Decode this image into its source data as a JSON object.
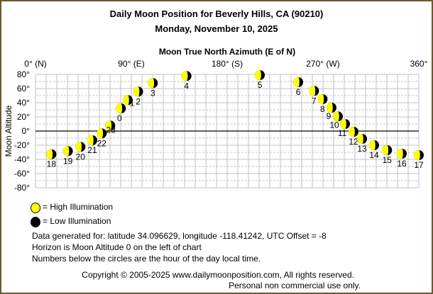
{
  "title": "Daily Moon Position for Beverly Hills, CA (90210)",
  "subtitle": "Monday, November 10, 2025",
  "chart_data": {
    "type": "scatter",
    "title": "Moon True North Azimuth (E of N)",
    "xlabel": "Moon True North Azimuth (E of N)",
    "ylabel": "Moon Altitude",
    "xlim": [
      0,
      360
    ],
    "ylim": [
      -80,
      80
    ],
    "x_ticks": [
      {
        "value": 0,
        "label": "0° (N)"
      },
      {
        "value": 90,
        "label": "90° (E)"
      },
      {
        "value": 180,
        "label": "180° (S)"
      },
      {
        "value": 270,
        "label": "270° (W)"
      },
      {
        "value": 360,
        "label": "360°"
      }
    ],
    "y_ticks": [
      {
        "value": 80,
        "label": "80°"
      },
      {
        "value": 60,
        "label": "60°"
      },
      {
        "value": 40,
        "label": "40°"
      },
      {
        "value": 20,
        "label": "20°"
      },
      {
        "value": 0,
        "label": "0°"
      },
      {
        "value": -20,
        "label": "-20°"
      },
      {
        "value": -40,
        "label": "-40°"
      },
      {
        "value": -60,
        "label": "-60°"
      },
      {
        "value": -80,
        "label": "-80°"
      }
    ],
    "grid": true,
    "horizon_altitude": 0,
    "points": [
      {
        "hour": "0",
        "azimuth": 80.2,
        "altitude": 32
      },
      {
        "hour": "1",
        "azimuth": 86.7,
        "altitude": 43.7
      },
      {
        "hour": "2",
        "azimuth": 96.4,
        "altitude": 55.7
      },
      {
        "hour": "3",
        "azimuth": 110.2,
        "altitude": 67.7
      },
      {
        "hour": "4",
        "azimuth": 141.8,
        "altitude": 77.7
      },
      {
        "hour": "5",
        "azimuth": 210.7,
        "altitude": 79
      },
      {
        "hour": "6",
        "azimuth": 246.7,
        "altitude": 69
      },
      {
        "hour": "7",
        "azimuth": 261.6,
        "altitude": 56.7
      },
      {
        "hour": "8",
        "azimuth": 269.6,
        "altitude": 45
      },
      {
        "hour": "9",
        "azimuth": 278,
        "altitude": 33
      },
      {
        "hour": "10",
        "azimuth": 284,
        "altitude": 20.7
      },
      {
        "hour": "11",
        "azimuth": 290.7,
        "altitude": 10
      },
      {
        "hour": "12",
        "azimuth": 298.7,
        "altitude": -1
      },
      {
        "hour": "13",
        "azimuth": 306.7,
        "altitude": -11
      },
      {
        "hour": "14",
        "azimuth": 318,
        "altitude": -20
      },
      {
        "hour": "15",
        "azimuth": 330.2,
        "altitude": -27
      },
      {
        "hour": "16",
        "azimuth": 344,
        "altitude": -32
      },
      {
        "hour": "17",
        "azimuth": 360,
        "altitude": -34
      },
      {
        "hour": "18",
        "azimuth": 14.9,
        "altitude": -32.7
      },
      {
        "hour": "19",
        "azimuth": 30.4,
        "altitude": -28.3
      },
      {
        "hour": "20",
        "azimuth": 42.2,
        "altitude": -22.3
      },
      {
        "hour": "21",
        "azimuth": 53.3,
        "altitude": -13
      },
      {
        "hour": "22",
        "azimuth": 62.2,
        "altitude": -3.3
      },
      {
        "hour": "23",
        "azimuth": 70.2,
        "altitude": 7.7
      }
    ],
    "colors": {
      "high": "#ffff00",
      "low": "#000000",
      "grid": "#c0c0c0"
    }
  },
  "legend": {
    "high": "= High Illumination",
    "low": "= Low Illumination"
  },
  "notes": [
    "Data generated for: latitude 34.096629, longitude -118.41242, UTC Offset = -8",
    "Horizon is Moon Altitude 0 on the left of chart",
    "Numbers below the circles are the hour of the day local time."
  ],
  "copyright": "Copyright © 2005-2025 www.dailymoonposition.com, All rights reserved.",
  "license": "Personal non commercial use only."
}
